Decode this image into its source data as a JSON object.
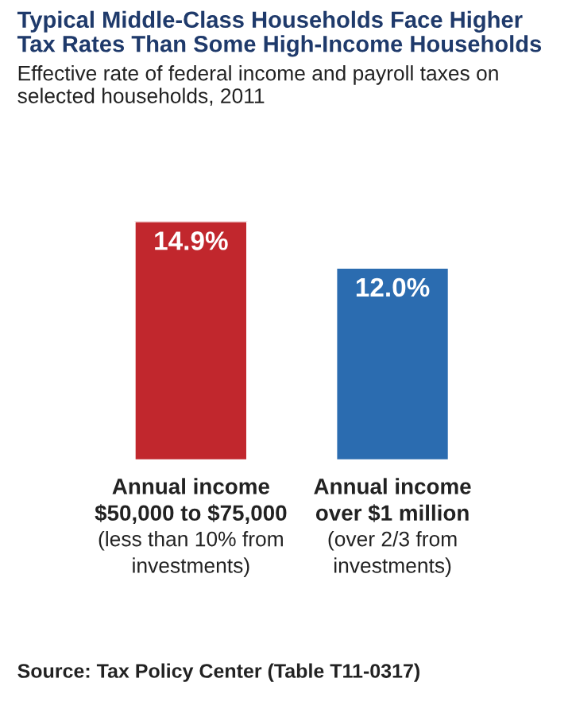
{
  "chart_data": {
    "type": "bar",
    "title": "Typical Middle-Class Households Face Higher\nTax Rates Than Some High-Income Households",
    "subtitle": "Effective rate of federal income and payroll taxes on\nselected households, 2011",
    "categories": [
      "Annual income\n$50,000 to $75,000\n(less than 10% from\ninvestments)",
      "Annual income\nover $1 million\n(over 2/3 from\ninvestments)"
    ],
    "values": [
      14.9,
      12.0
    ],
    "colors": [
      "#c1272d",
      "#2b6cb0"
    ],
    "value_labels": [
      "14.9%",
      "12.0%"
    ],
    "annotations": [
      "Source: Tax Policy Center (Table T11-0317)"
    ]
  }
}
